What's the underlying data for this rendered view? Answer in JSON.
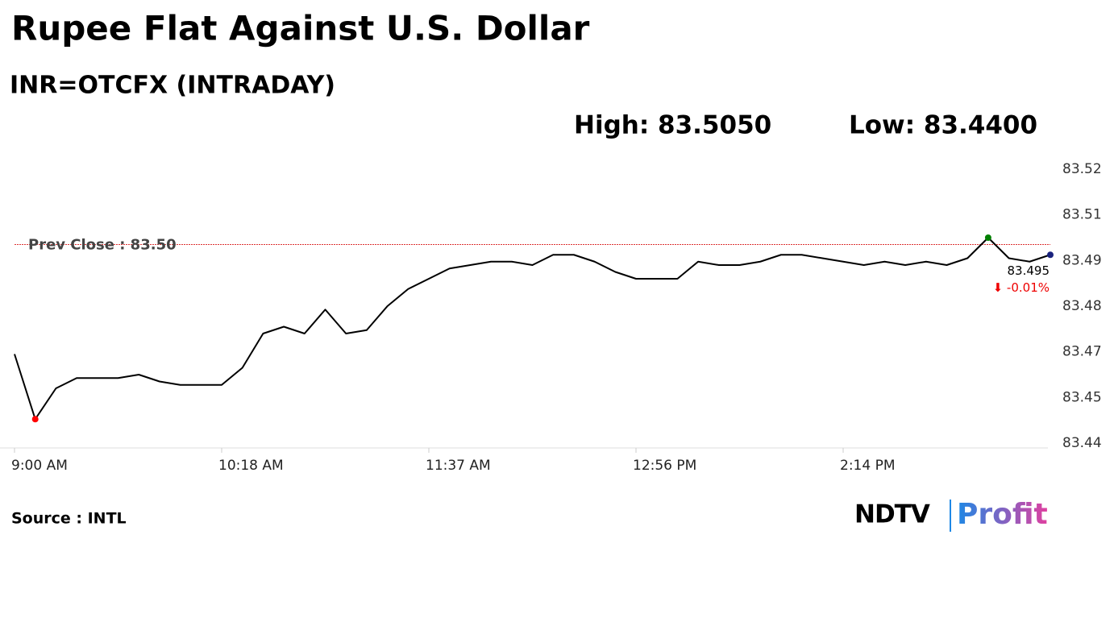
{
  "chart_data": {
    "type": "line",
    "title": "Rupee Flat Against U.S. Dollar",
    "subtitle": "INR=OTCFX (INTRADAY)",
    "high_label": "High: 83.5050",
    "low_label": "Low: 83.4400",
    "categories": [
      "9:00 AM",
      null,
      null,
      null,
      null,
      null,
      null,
      null,
      null,
      null,
      "10:18 AM",
      null,
      null,
      null,
      null,
      null,
      null,
      null,
      null,
      null,
      "11:37 AM",
      null,
      null,
      null,
      null,
      null,
      null,
      null,
      null,
      null,
      "12:56 PM",
      null,
      null,
      null,
      null,
      null,
      null,
      null,
      null,
      null,
      "2:14 PM",
      null,
      null,
      null,
      null,
      null,
      null,
      null,
      null,
      null,
      null
    ],
    "values": [
      83.466,
      83.447,
      83.456,
      83.459,
      83.459,
      83.459,
      83.46,
      83.458,
      83.457,
      83.457,
      83.457,
      83.462,
      83.472,
      83.474,
      83.472,
      83.479,
      83.472,
      83.473,
      83.48,
      83.485,
      83.488,
      83.491,
      83.492,
      83.493,
      83.493,
      83.492,
      83.495,
      83.495,
      83.493,
      83.49,
      83.488,
      83.488,
      83.488,
      83.493,
      83.492,
      83.492,
      83.493,
      83.495,
      83.495,
      83.494,
      83.493,
      83.492,
      83.493,
      83.492,
      83.493,
      83.492,
      83.494,
      83.5,
      83.494,
      83.493,
      83.495
    ],
    "color": "#000000",
    "ylim": [
      83.44,
      83.52
    ],
    "yticks": [
      83.44,
      {
        "value": 83.45333,
        "label": "83.45"
      },
      {
        "value": 83.46667,
        "label": "83.47"
      },
      83.48,
      {
        "value": 83.49333,
        "label": "83.49"
      },
      {
        "value": 83.50667,
        "label": "83.51"
      },
      83.52
    ],
    "prev_close": {
      "value": 83.498,
      "label": "Prev Close : 83.50"
    },
    "last_label": "83.495",
    "change_label": "⬇ -0.01%",
    "source": "Source : INTL",
    "logo": {
      "brand": "NDTV",
      "product": "Profit"
    }
  }
}
